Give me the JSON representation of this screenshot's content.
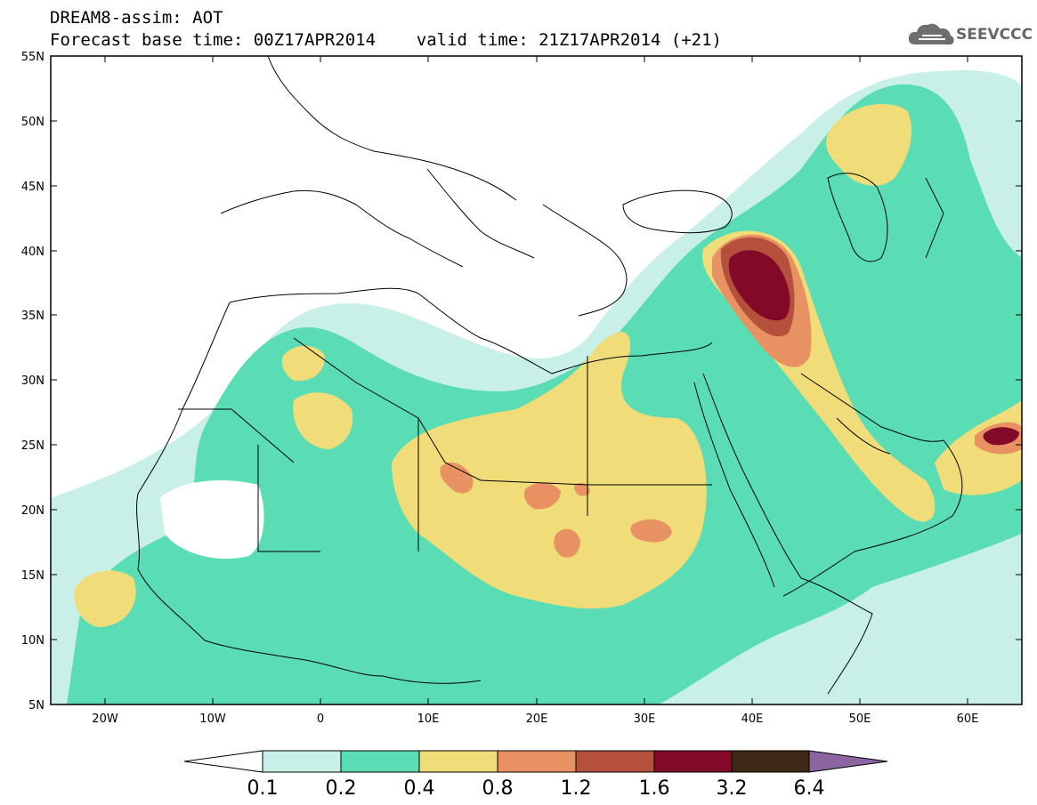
{
  "header": {
    "line1": "DREAM8-assim: AOT",
    "line2": "Forecast base time: 00Z17APR2014    valid time: 21Z17APR2014 (+21)"
  },
  "logo": {
    "text": "SEEVCCC",
    "icon": "cloud-icon"
  },
  "map": {
    "lat_ticks": [
      "55N",
      "50N",
      "45N",
      "40N",
      "35N",
      "30N",
      "25N",
      "20N",
      "15N",
      "10N",
      "5N"
    ],
    "lon_ticks": [
      "20W",
      "10W",
      "0",
      "10E",
      "20E",
      "30E",
      "40E",
      "50E",
      "60E"
    ],
    "extent": {
      "lon": [
        -25,
        65
      ],
      "lat": [
        5,
        55
      ]
    }
  },
  "colorbar": {
    "labels": [
      "0.1",
      "0.2",
      "0.4",
      "0.8",
      "1.2",
      "1.6",
      "3.2",
      "6.4"
    ],
    "colors": [
      "#c8f0e8",
      "#5adcb4",
      "#f0dc78",
      "#e89264",
      "#b4503c",
      "#820a28",
      "#3c2814",
      "#8c64a0"
    ]
  },
  "palette": {
    "aot_0_1": "#c8f0e8",
    "aot_0_2": "#5adcb4",
    "aot_0_4": "#f0dc78",
    "aot_0_8": "#e89264",
    "aot_1_2": "#b4503c",
    "aot_1_6": "#820a28"
  }
}
